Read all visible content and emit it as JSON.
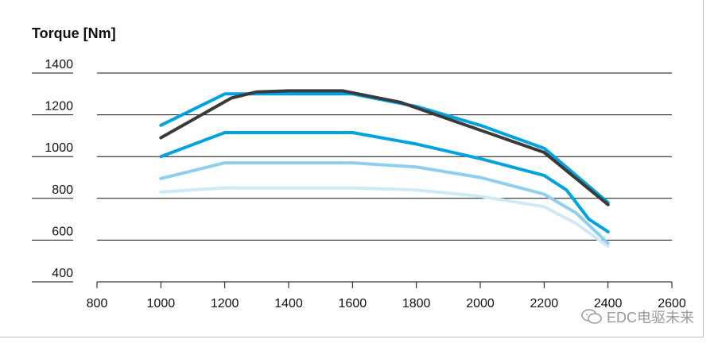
{
  "chart_data": {
    "type": "line",
    "title": "Torque [Nm]",
    "xlabel": "",
    "ylabel": "",
    "xlim": [
      800,
      2600
    ],
    "ylim": [
      400,
      1400
    ],
    "x_ticks": [
      800,
      1000,
      1200,
      1400,
      1600,
      1800,
      2000,
      2200,
      2400,
      2600
    ],
    "y_ticks": [
      400,
      600,
      800,
      1000,
      1200,
      1400
    ],
    "grid": "horizontal",
    "series": [
      {
        "color": "#cfe9f7",
        "points": [
          [
            1000,
            830
          ],
          [
            1200,
            850
          ],
          [
            1600,
            850
          ],
          [
            1800,
            840
          ],
          [
            2000,
            810
          ],
          [
            2200,
            760
          ],
          [
            2300,
            680
          ],
          [
            2400,
            570
          ]
        ]
      },
      {
        "color": "#8fcfee",
        "points": [
          [
            1000,
            895
          ],
          [
            1200,
            970
          ],
          [
            1600,
            970
          ],
          [
            1800,
            950
          ],
          [
            2000,
            900
          ],
          [
            2200,
            820
          ],
          [
            2300,
            730
          ],
          [
            2400,
            585
          ]
        ]
      },
      {
        "color": "#00a3e0",
        "points": [
          [
            1000,
            1000
          ],
          [
            1200,
            1115
          ],
          [
            1600,
            1115
          ],
          [
            1800,
            1060
          ],
          [
            2000,
            990
          ],
          [
            2200,
            910
          ],
          [
            2270,
            840
          ],
          [
            2340,
            700
          ],
          [
            2400,
            640
          ]
        ]
      },
      {
        "color": "#00a3e0",
        "points": [
          [
            1000,
            1150
          ],
          [
            1200,
            1300
          ],
          [
            1600,
            1300
          ],
          [
            1800,
            1240
          ],
          [
            2000,
            1150
          ],
          [
            2200,
            1040
          ],
          [
            2400,
            780
          ]
        ]
      },
      {
        "color": "#3a3a3a",
        "points": [
          [
            1000,
            1090
          ],
          [
            1220,
            1280
          ],
          [
            1300,
            1310
          ],
          [
            1400,
            1315
          ],
          [
            1570,
            1315
          ],
          [
            1750,
            1260
          ],
          [
            1900,
            1180
          ],
          [
            2200,
            1020
          ],
          [
            2400,
            770
          ]
        ]
      }
    ]
  },
  "watermark": "EDC电驱未来"
}
